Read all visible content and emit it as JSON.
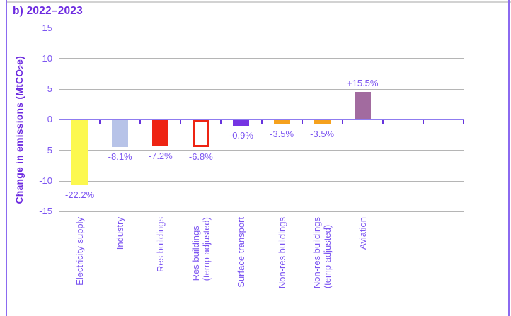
{
  "chart_data": {
    "type": "bar",
    "title": "b) 2022–2023",
    "ylabel": "Change in emissions (MtCO₂e)",
    "ylim": [
      -15,
      15
    ],
    "yticks": [
      15,
      10,
      5,
      0,
      -5,
      -10,
      -15
    ],
    "grid": true,
    "legend": false,
    "bars": [
      {
        "category_lines": [
          "Electricity supply"
        ],
        "value_mtco2e": -10.7,
        "label": "-22.2%",
        "fill": "#fcf84f",
        "outline": false
      },
      {
        "category_lines": [
          "Industry"
        ],
        "value_mtco2e": -4.5,
        "label": "-8.1%",
        "fill": "#b7c3e8",
        "outline": false
      },
      {
        "category_lines": [
          "Res buildings"
        ],
        "value_mtco2e": -4.3,
        "label": "-7.2%",
        "fill": "#ee2413",
        "outline": false
      },
      {
        "category_lines": [
          "Res buildings",
          "(temp adjusted)"
        ],
        "value_mtco2e": -4.4,
        "label": "-6.8%",
        "fill": "#ee2413",
        "outline": true
      },
      {
        "category_lines": [
          "Surface transport"
        ],
        "value_mtco2e": -1.0,
        "label": "-0.9%",
        "fill": "#7634e3",
        "outline": false
      },
      {
        "category_lines": [
          "Non-res buildings"
        ],
        "value_mtco2e": -0.8,
        "label": "-3.5%",
        "fill": "#f5a11d",
        "outline": false
      },
      {
        "category_lines": [
          "Non-res buildings",
          "(temp adjusted)"
        ],
        "value_mtco2e": -0.8,
        "label": "-3.5%",
        "fill": "#f5a11d",
        "outline": true
      },
      {
        "category_lines": [
          "Aviation"
        ],
        "value_mtco2e": 4.6,
        "label": "+15.5%",
        "fill": "#a26b9f",
        "outline": false
      }
    ],
    "colors": {
      "title_text": "#6d2be0",
      "axis_text": "#7c55f1",
      "gridline": "#b5b5b5",
      "zero_line": "#8f7cf0",
      "tick_mark": "#6633dd",
      "frame_line_purple": "#8b6af0",
      "frame_line_gray": "#d2d2d2"
    }
  }
}
